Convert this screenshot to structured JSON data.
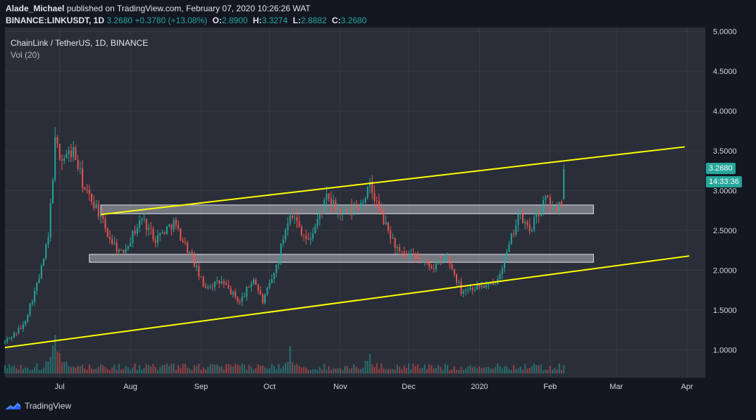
{
  "header": {
    "publisher": "Alade_Michael",
    "published_text": "published on TradingView.com, February 07, 2020 10:26:26 WAT",
    "symbol": "BINANCE:LINKUSDT, 1D",
    "last": "3.2680",
    "change": "+0.3780 (+13.08%)",
    "o_label": "O:",
    "o": "2.8900",
    "h_label": "H:",
    "h": "3.3274",
    "l_label": "L:",
    "l": "2.8882",
    "c_label": "C:",
    "c": "3.2680"
  },
  "legend": {
    "title": "ChainLink / TetherUS, 1D, BINANCE",
    "volume": "Vol (20)"
  },
  "price_tags": {
    "last_price": "3.2680",
    "countdown": "14:33:36"
  },
  "brand": {
    "name": "TradingView"
  },
  "colors": {
    "background": "#131722",
    "pane": "#2a2e39",
    "up": "#26a69a",
    "down": "#ef5350",
    "trendline": "#ffff00",
    "zone_fill": "#b2b5be",
    "axis_text": "#d1d4dc"
  },
  "chart_data": {
    "type": "candlestick",
    "title": "ChainLink / TetherUS, 1D, BINANCE",
    "y_scale": "linear",
    "ylim": [
      0.65,
      5.05
    ],
    "y_ticks": [
      "1.0000",
      "1.5000",
      "2.0000",
      "2.5000",
      "3.0000",
      "3.5000",
      "4.0000",
      "4.5000",
      "5.0000"
    ],
    "x_range": [
      "2019-06-07",
      "2020-04-09"
    ],
    "x_ticks": [
      {
        "label": "Jul",
        "date": "2019-07-01"
      },
      {
        "label": "Aug",
        "date": "2019-08-01"
      },
      {
        "label": "Sep",
        "date": "2019-09-01"
      },
      {
        "label": "Oct",
        "date": "2019-10-01"
      },
      {
        "label": "Nov",
        "date": "2019-11-01"
      },
      {
        "label": "Dec",
        "date": "2019-12-01"
      },
      {
        "label": "2020",
        "date": "2020-01-01"
      },
      {
        "label": "Feb",
        "date": "2020-02-01"
      },
      {
        "label": "Mar",
        "date": "2020-03-01"
      },
      {
        "label": "Apr",
        "date": "2020-04-01"
      }
    ],
    "anchors": [
      {
        "date": "2019-06-07",
        "close": 1.1
      },
      {
        "date": "2019-06-15",
        "close": 1.3
      },
      {
        "date": "2019-06-22",
        "close": 1.9
      },
      {
        "date": "2019-06-26",
        "close": 2.4
      },
      {
        "date": "2019-06-29",
        "close": 3.6
      },
      {
        "date": "2019-07-02",
        "close": 3.4
      },
      {
        "date": "2019-07-07",
        "close": 3.5
      },
      {
        "date": "2019-07-12",
        "close": 3.0
      },
      {
        "date": "2019-07-17",
        "close": 2.8
      },
      {
        "date": "2019-07-22",
        "close": 2.45
      },
      {
        "date": "2019-07-28",
        "close": 2.2
      },
      {
        "date": "2019-08-06",
        "close": 2.65
      },
      {
        "date": "2019-08-12",
        "close": 2.4
      },
      {
        "date": "2019-08-20",
        "close": 2.6
      },
      {
        "date": "2019-08-28",
        "close": 2.15
      },
      {
        "date": "2019-09-02",
        "close": 1.8
      },
      {
        "date": "2019-09-10",
        "close": 1.85
      },
      {
        "date": "2019-09-18",
        "close": 1.6
      },
      {
        "date": "2019-09-24",
        "close": 1.9
      },
      {
        "date": "2019-09-28",
        "close": 1.6
      },
      {
        "date": "2019-10-03",
        "close": 1.95
      },
      {
        "date": "2019-10-10",
        "close": 2.75
      },
      {
        "date": "2019-10-18",
        "close": 2.35
      },
      {
        "date": "2019-10-26",
        "close": 2.9
      },
      {
        "date": "2019-11-02",
        "close": 2.7
      },
      {
        "date": "2019-11-09",
        "close": 2.8
      },
      {
        "date": "2019-11-14",
        "close": 3.05
      },
      {
        "date": "2019-11-21",
        "close": 2.55
      },
      {
        "date": "2019-11-27",
        "close": 2.2
      },
      {
        "date": "2019-12-04",
        "close": 2.15
      },
      {
        "date": "2019-12-12",
        "close": 2.05
      },
      {
        "date": "2019-12-18",
        "close": 2.15
      },
      {
        "date": "2019-12-24",
        "close": 1.75
      },
      {
        "date": "2020-01-01",
        "close": 1.8
      },
      {
        "date": "2020-01-07",
        "close": 1.8
      },
      {
        "date": "2020-01-13",
        "close": 2.2
      },
      {
        "date": "2020-01-18",
        "close": 2.7
      },
      {
        "date": "2020-01-23",
        "close": 2.5
      },
      {
        "date": "2020-01-30",
        "close": 2.9
      },
      {
        "date": "2020-02-03",
        "close": 2.75
      },
      {
        "date": "2020-02-06",
        "close": 2.89
      },
      {
        "date": "2020-02-07",
        "close": 3.268
      }
    ],
    "last_candle": {
      "date": "2020-02-07",
      "open": 2.89,
      "high": 3.3274,
      "low": 2.8882,
      "close": 3.268
    },
    "volume_peaks": [
      {
        "date": "2019-06-29",
        "volume_relative": 0.95
      },
      {
        "date": "2019-10-10",
        "volume_relative": 0.55
      },
      {
        "date": "2019-11-14",
        "volume_relative": 0.3
      }
    ],
    "trendlines": [
      {
        "name": "upper",
        "from": {
          "date": "2019-07-19",
          "price": 2.7
        },
        "to": {
          "date": "2020-03-31",
          "price": 3.55
        }
      },
      {
        "name": "lower",
        "from": {
          "date": "2019-06-07",
          "price": 1.03
        },
        "to": {
          "date": "2020-04-02",
          "price": 2.18
        }
      }
    ],
    "zones": [
      {
        "name": "upper-range",
        "from": "2019-07-19",
        "to": "2020-02-20",
        "low": 2.71,
        "high": 2.82
      },
      {
        "name": "lower-range",
        "from": "2019-07-14",
        "to": "2020-02-20",
        "low": 2.1,
        "high": 2.2
      }
    ]
  }
}
